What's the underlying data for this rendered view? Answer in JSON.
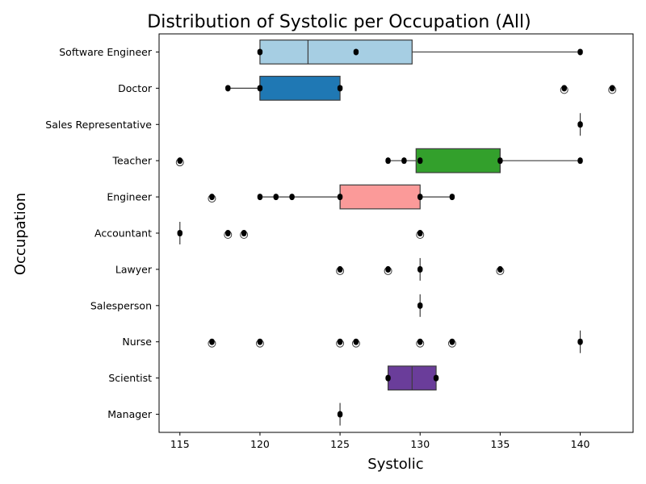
{
  "chart_data": {
    "type": "box",
    "orientation": "horizontal",
    "title": "Distribution of Systolic per Occupation (All)",
    "xlabel": "Systolic",
    "ylabel": "Occupation",
    "xlim": [
      113.7,
      143.3
    ],
    "xticks": [
      115,
      120,
      125,
      130,
      135,
      140
    ],
    "grid": false,
    "categories": [
      "Software Engineer",
      "Doctor",
      "Sales Representative",
      "Teacher",
      "Engineer",
      "Accountant",
      "Lawyer",
      "Salesperson",
      "Nurse",
      "Scientist",
      "Manager"
    ],
    "series": [
      {
        "category": "Software Engineer",
        "color": "#a6cee3",
        "whisker_low": 120,
        "q1": 120,
        "median": 123,
        "q3": 129.5,
        "whisker_high": 140,
        "outliers": [],
        "points": [
          120,
          126,
          140
        ]
      },
      {
        "category": "Doctor",
        "color": "#1f78b4",
        "whisker_low": 118,
        "q1": 120,
        "median": 120,
        "q3": 125,
        "whisker_high": 125,
        "outliers": [
          139,
          142
        ],
        "points": [
          118,
          120,
          125,
          139,
          142
        ]
      },
      {
        "category": "Sales Representative",
        "color": "#b2df8a",
        "whisker_low": 140,
        "q1": 140,
        "median": 140,
        "q3": 140,
        "whisker_high": 140,
        "outliers": [],
        "points": [
          140
        ]
      },
      {
        "category": "Teacher",
        "color": "#33a02c",
        "whisker_low": 128,
        "q1": 129.75,
        "median": 135,
        "q3": 135,
        "whisker_high": 140,
        "outliers": [
          115
        ],
        "points": [
          115,
          128,
          129,
          130,
          135,
          140
        ]
      },
      {
        "category": "Engineer",
        "color": "#fb9a99",
        "whisker_low": 120,
        "q1": 125,
        "median": 125,
        "q3": 130,
        "whisker_high": 132,
        "outliers": [
          117
        ],
        "points": [
          117,
          120,
          121,
          122,
          125,
          130,
          132
        ]
      },
      {
        "category": "Accountant",
        "color": "#e31a1c",
        "whisker_low": 115,
        "q1": 115,
        "median": 115,
        "q3": 115,
        "whisker_high": 115,
        "outliers": [
          118,
          119,
          130
        ],
        "points": [
          115,
          118,
          119,
          130
        ]
      },
      {
        "category": "Lawyer",
        "color": "#fdbf6f",
        "whisker_low": 130,
        "q1": 130,
        "median": 130,
        "q3": 130,
        "whisker_high": 130,
        "outliers": [
          125,
          128,
          135
        ],
        "points": [
          125,
          128,
          130,
          135
        ]
      },
      {
        "category": "Salesperson",
        "color": "#ff7f00",
        "whisker_low": 130,
        "q1": 130,
        "median": 130,
        "q3": 130,
        "whisker_high": 130,
        "outliers": [],
        "points": [
          130
        ]
      },
      {
        "category": "Nurse",
        "color": "#cab2d6",
        "whisker_low": 140,
        "q1": 140,
        "median": 140,
        "q3": 140,
        "whisker_high": 140,
        "outliers": [
          117,
          120,
          125,
          126,
          130,
          132
        ],
        "points": [
          117,
          120,
          125,
          126,
          130,
          132,
          140
        ]
      },
      {
        "category": "Scientist",
        "color": "#6a3d9a",
        "whisker_low": 128,
        "q1": 128,
        "median": 129.5,
        "q3": 131,
        "whisker_high": 131,
        "outliers": [],
        "points": [
          128,
          131
        ]
      },
      {
        "category": "Manager",
        "color": "#ffff99",
        "whisker_low": 125,
        "q1": 125,
        "median": 125,
        "q3": 125,
        "whisker_high": 125,
        "outliers": [],
        "points": [
          125
        ]
      }
    ]
  }
}
